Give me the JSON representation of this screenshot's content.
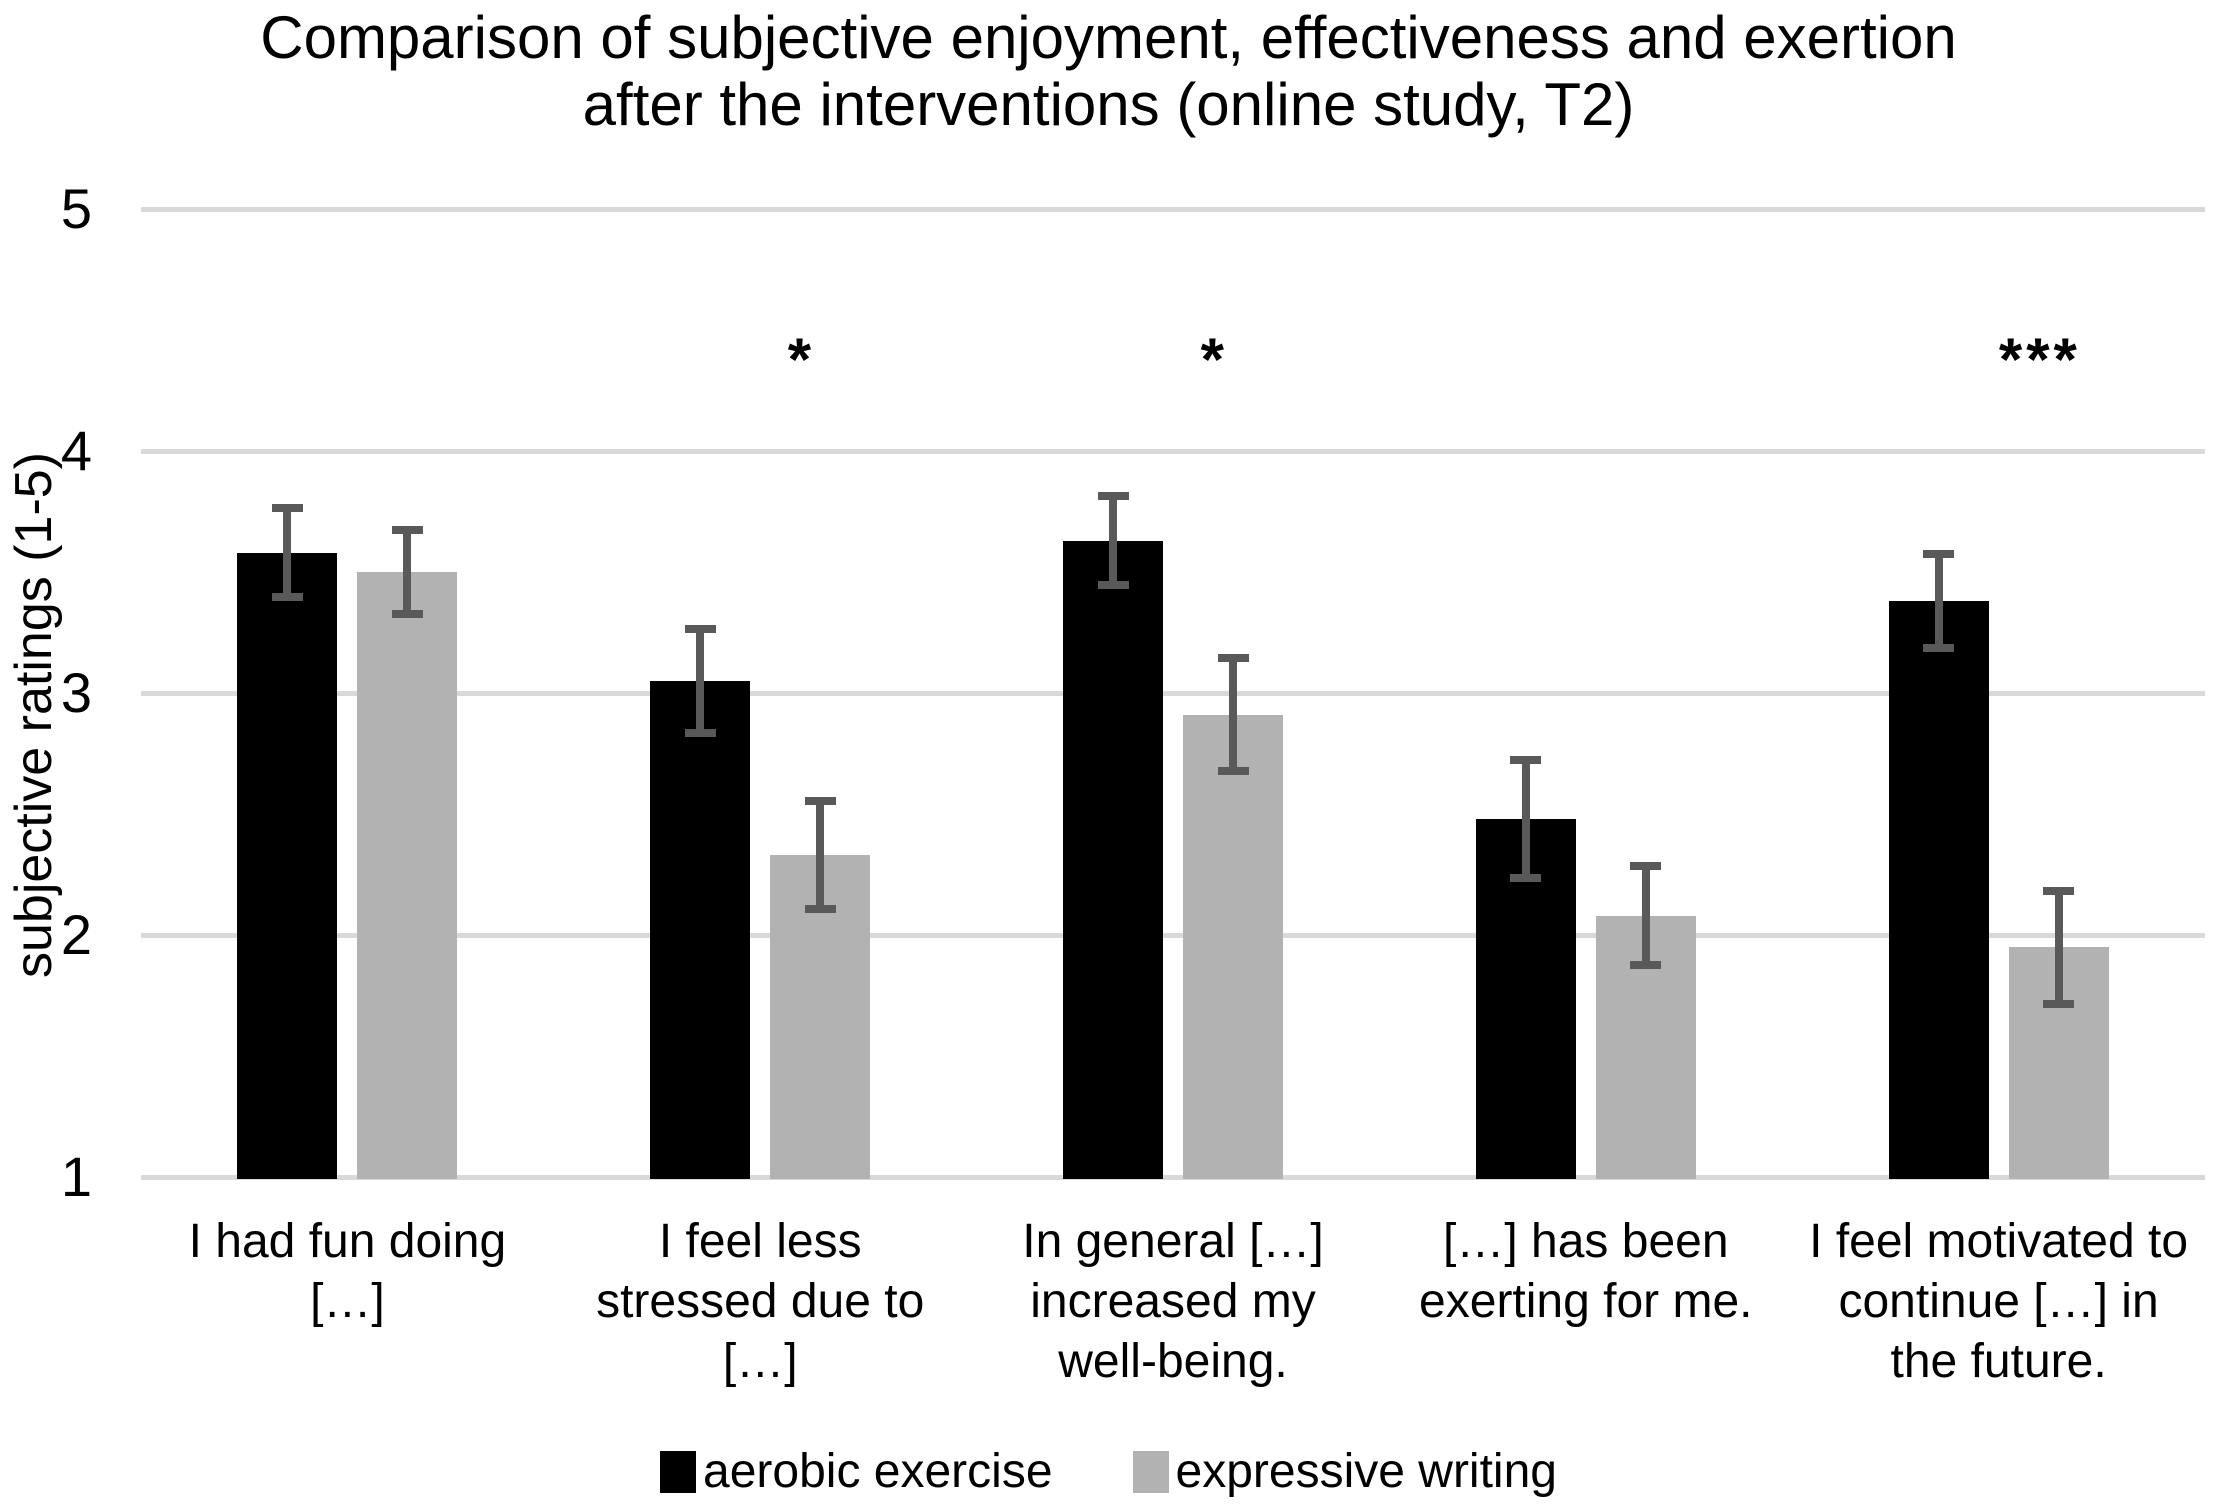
{
  "chart_data": {
    "type": "bar",
    "title_lines": [
      "Comparison of subjective enjoyment, effectiveness and exertion",
      "after the interventions (online study, T2)"
    ],
    "ylabel": "subjective ratings (1-5)",
    "ylim": [
      1,
      5
    ],
    "yticks": [
      5,
      4,
      3,
      2,
      1
    ],
    "grid": true,
    "legend_position": "bottom",
    "categories": [
      [
        "I had fun doing",
        "[…]"
      ],
      [
        "I feel less",
        "stressed due to",
        "[…]"
      ],
      [
        "In general […]",
        "increased my",
        "well-being."
      ],
      [
        "[…] has been",
        "exerting for me."
      ],
      [
        "I feel motivated to",
        "continue […] in",
        "the future."
      ]
    ],
    "series": [
      {
        "name": "aerobic exercise",
        "color": "#000000",
        "values": [
          3.58,
          3.05,
          3.63,
          2.48,
          3.38
        ],
        "errors": [
          0.2,
          0.23,
          0.2,
          0.26,
          0.21
        ]
      },
      {
        "name": "expressive writing",
        "color": "#b2b2b2",
        "values": [
          3.5,
          2.33,
          2.91,
          2.08,
          1.95
        ],
        "errors": [
          0.19,
          0.24,
          0.25,
          0.22,
          0.25
        ]
      }
    ],
    "significance": [
      {
        "category_index": 1,
        "label": "*"
      },
      {
        "category_index": 2,
        "label": "*"
      },
      {
        "category_index": 4,
        "label": "***"
      }
    ],
    "colors": {
      "error_bar": "#595959",
      "gridline": "#d9d9d9",
      "text": "#000000",
      "background": "#ffffff"
    }
  }
}
